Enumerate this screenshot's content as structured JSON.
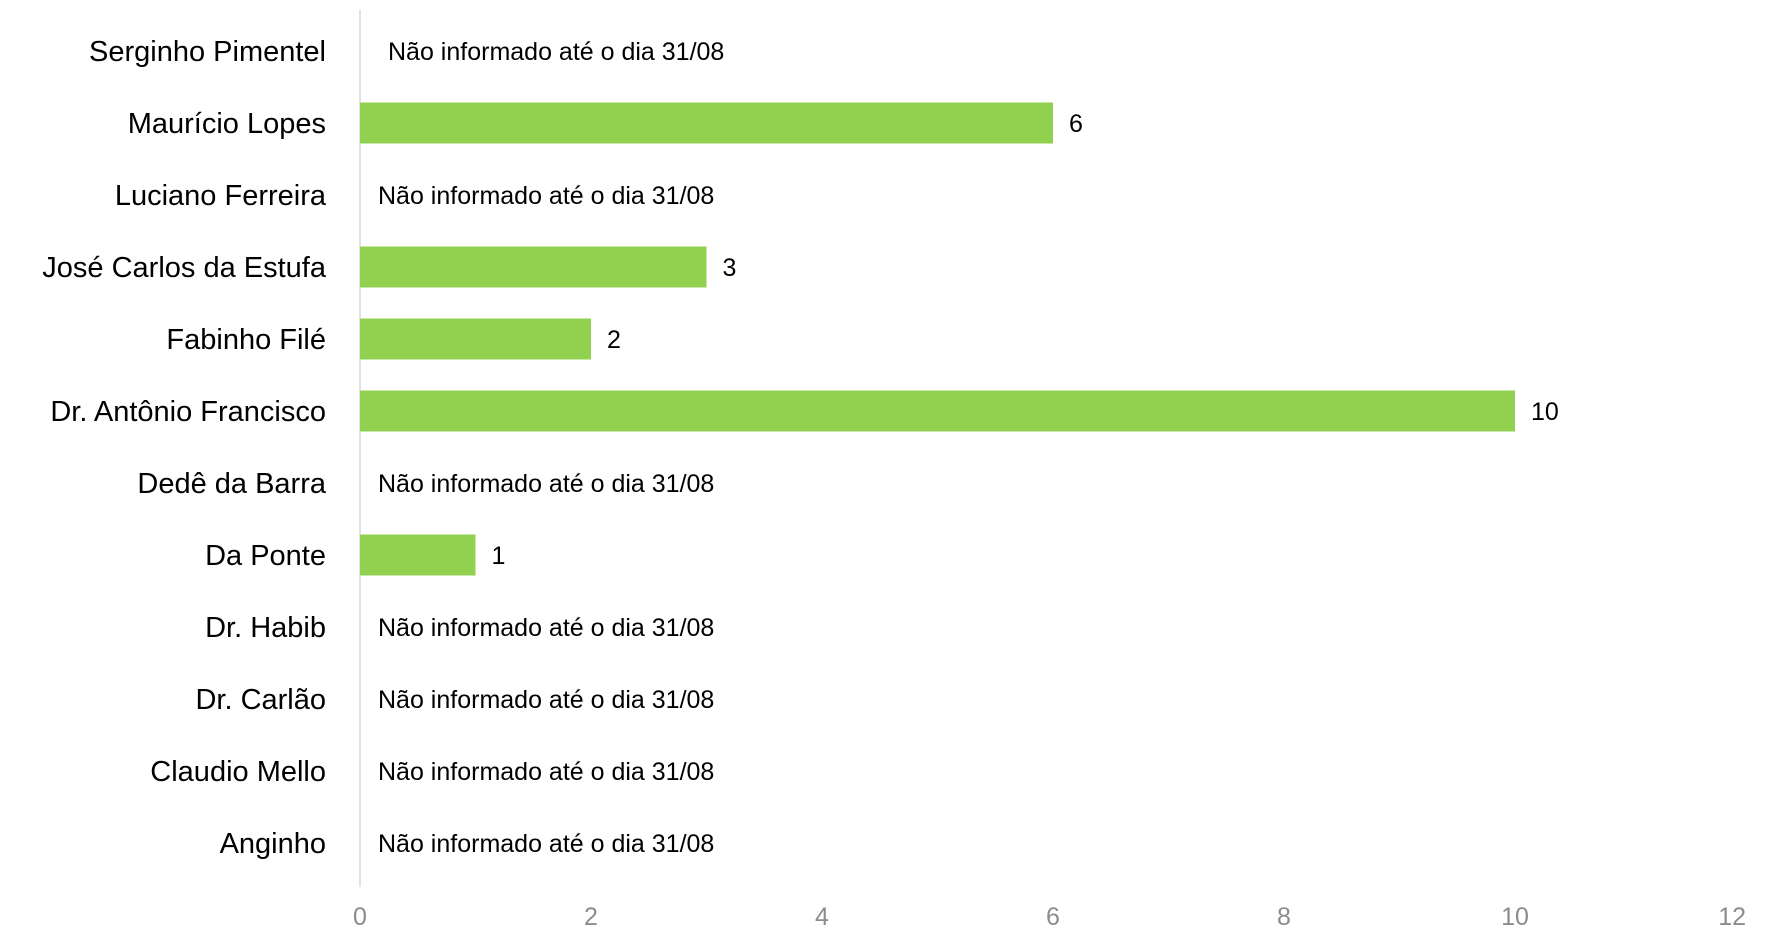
{
  "chart_data": {
    "type": "bar",
    "orientation": "horizontal",
    "categories": [
      "Serginho Pimentel",
      "Maurício Lopes",
      "Luciano Ferreira",
      "José Carlos da Estufa",
      "Fabinho Filé",
      "Dr. Antônio Francisco",
      "Dedê da Barra",
      "Da Ponte",
      "Dr. Habib",
      "Dr. Carlão",
      "Claudio Mello",
      "Anginho"
    ],
    "values": [
      null,
      6,
      null,
      3,
      2,
      10,
      null,
      1,
      null,
      null,
      null,
      null
    ],
    "data_labels": [
      "",
      "6",
      "",
      "3",
      "2",
      "10",
      "",
      "1",
      "",
      "",
      "",
      ""
    ],
    "notes": [
      "Não informado até o dia 31/08",
      "",
      "Não informado até o dia 31/08",
      "",
      "",
      "",
      "Não informado até o dia 31/08",
      "",
      "Não informado até o dia 31/08",
      "Não informado até o dia 31/08",
      "Não informado até o dia 31/08",
      "Não informado até o dia 31/08"
    ],
    "xlim": [
      0,
      12
    ],
    "xticks": [
      0,
      2,
      4,
      6,
      8,
      10,
      12
    ],
    "title": "",
    "xlabel": "",
    "ylabel": "",
    "grid": false,
    "legend": "none",
    "bar_color": "#92d050",
    "axis_line_color": "#d9d9d9",
    "tick_label_color": "#8c8c8c"
  }
}
